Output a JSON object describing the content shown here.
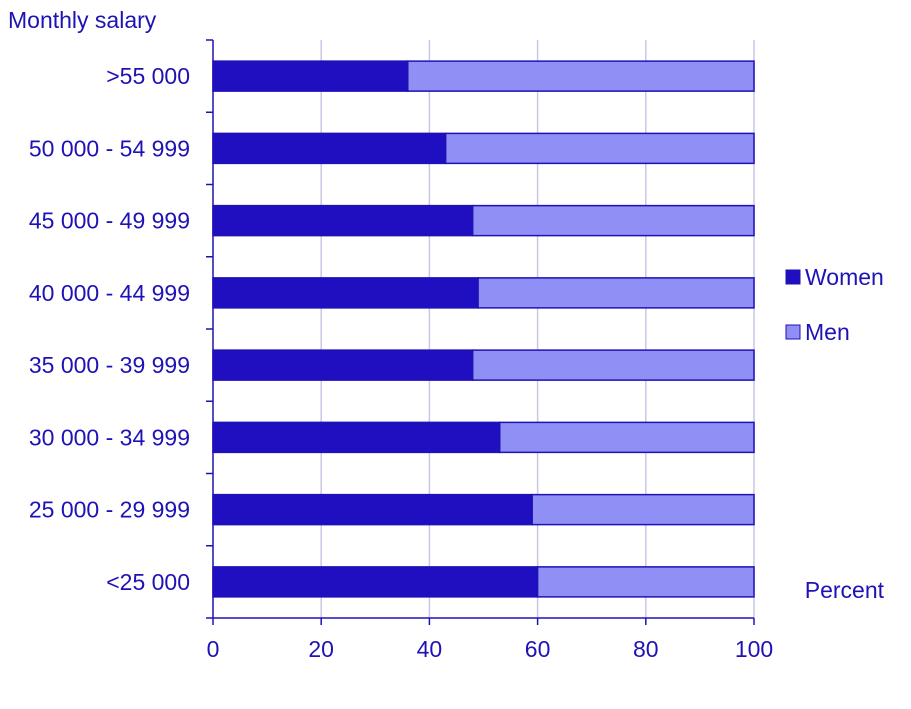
{
  "chart_data": {
    "type": "bar",
    "orientation": "horizontal",
    "stacked": true,
    "title": "",
    "ylabel": "Monthly salary",
    "xlabel": "Percent",
    "xlim": [
      0,
      100
    ],
    "xticks": [
      0,
      20,
      40,
      60,
      80,
      100
    ],
    "grid": true,
    "legend_position": "right",
    "categories": [
      ">55 000",
      "50 000 - 54 999",
      "45 000 - 49 999",
      "40 000 - 44 999",
      "35 000 - 39 999",
      "30 000 - 34 999",
      "25 000 - 29 999",
      "<25 000"
    ],
    "series": [
      {
        "name": "Women",
        "color": "#1f0fc0",
        "values": [
          36,
          43,
          48,
          49,
          48,
          53,
          59,
          60
        ]
      },
      {
        "name": "Men",
        "color": "#8f8ff5",
        "values": [
          64,
          57,
          52,
          51,
          52,
          47,
          41,
          40
        ]
      }
    ]
  }
}
